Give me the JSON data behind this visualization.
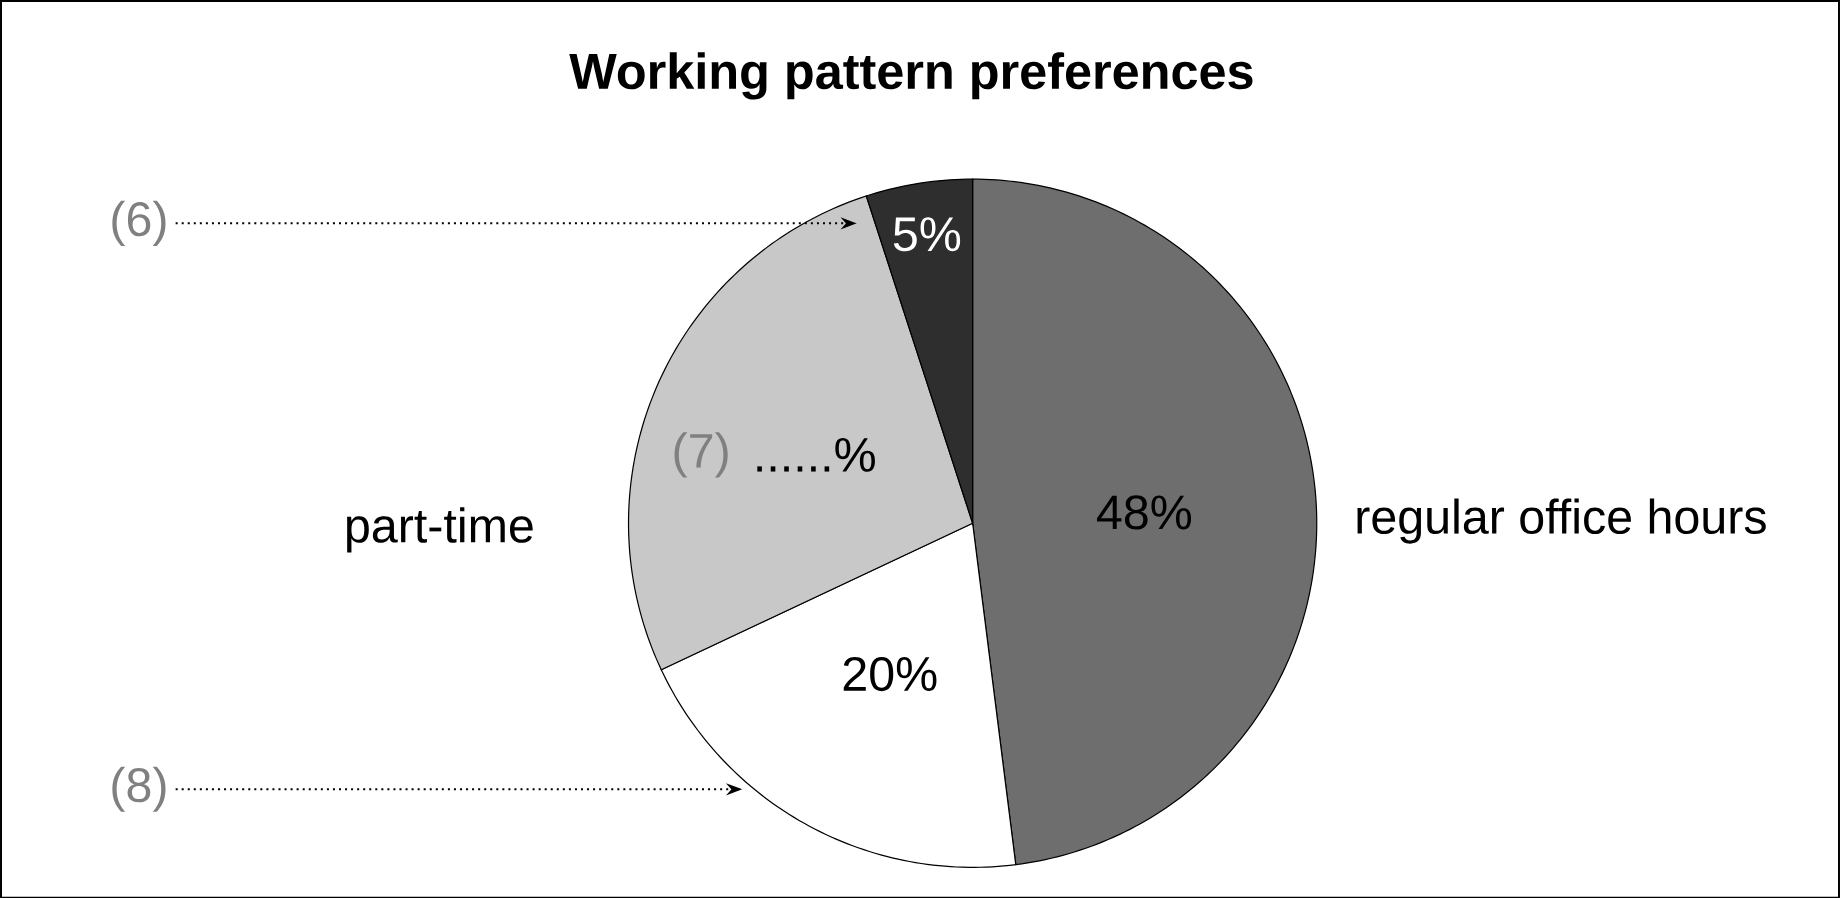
{
  "chart_data": {
    "type": "pie",
    "title": "Working pattern preferences",
    "categories": [
      "regular office hours",
      null,
      "part-time",
      null
    ],
    "values": [
      48,
      20,
      27,
      5
    ],
    "colors": [
      "#6e6e6e",
      "#ffffff",
      "#c8c8c8",
      "#2e2e2e"
    ],
    "value_labels": [
      "48%",
      "20%",
      "......%",
      "5%"
    ],
    "annotations": [
      "(6)",
      "(7)",
      "(8)"
    ]
  }
}
